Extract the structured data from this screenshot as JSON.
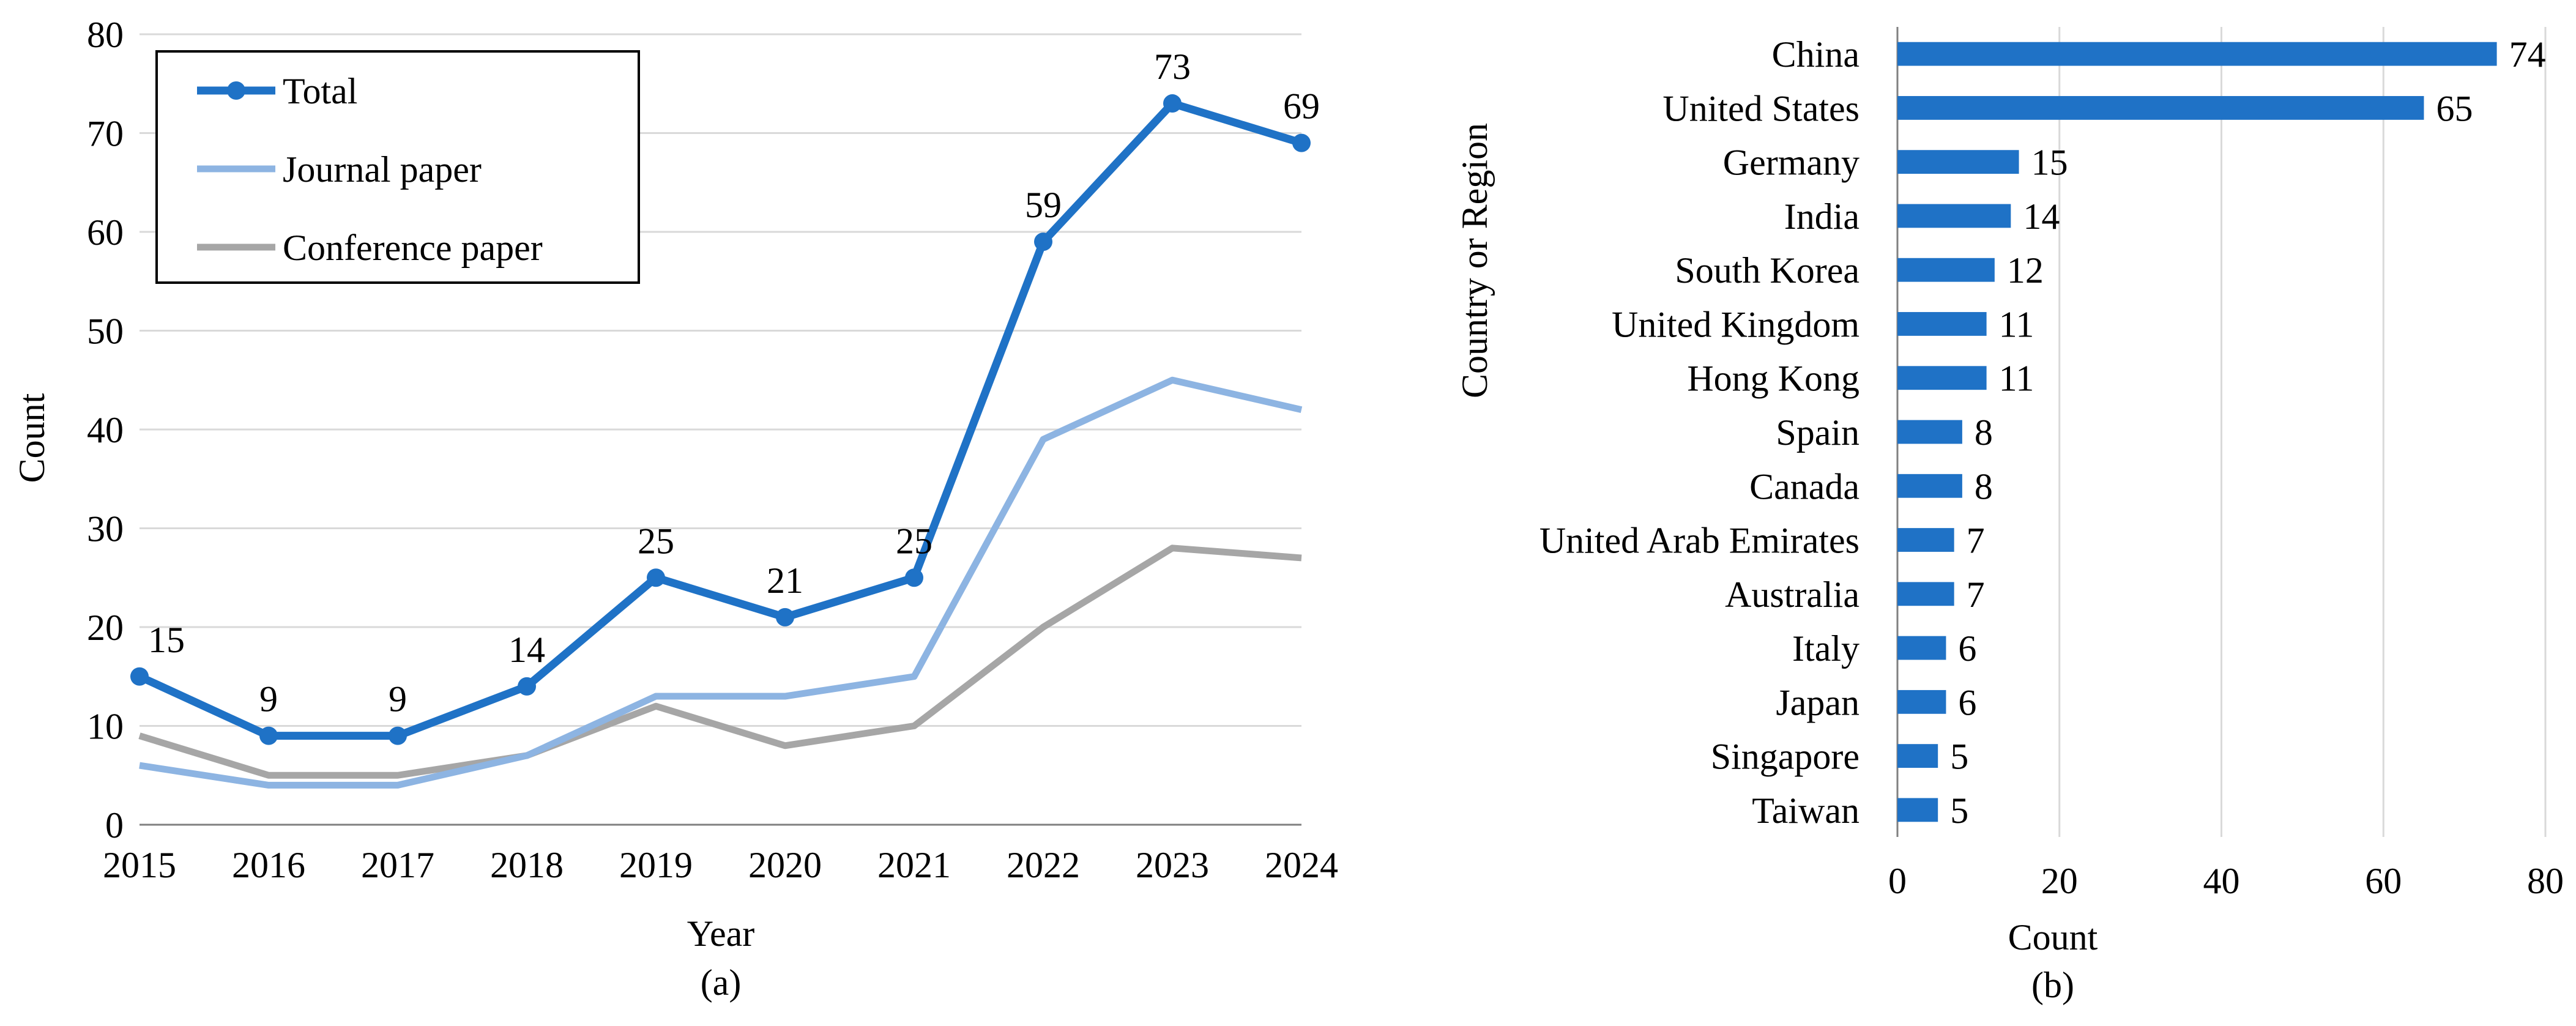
{
  "colors": {
    "total": "#1f72c6",
    "journal": "#8db4e2",
    "conference": "#a6a6a6",
    "bar": "#1f72c6",
    "grid": "#d9d9d9",
    "axis": "#808080",
    "legend_border": "#000000"
  },
  "chart_data": [
    {
      "type": "line",
      "panel_label": "(a)",
      "xlabel": "Year",
      "ylabel": "Count",
      "x": [
        "2015",
        "2016",
        "2017",
        "2018",
        "2019",
        "2020",
        "2021",
        "2022",
        "2023",
        "2024"
      ],
      "ylim": [
        0,
        80
      ],
      "yticks": [
        "0",
        "10",
        "20",
        "30",
        "40",
        "50",
        "60",
        "70",
        "80"
      ],
      "grid": true,
      "legend_position": "top-left",
      "series": [
        {
          "name": "Total",
          "key": "total",
          "markers": true,
          "data_labels": true,
          "values": [
            15,
            9,
            9,
            14,
            25,
            21,
            25,
            59,
            73,
            69
          ],
          "labels": [
            "15",
            "9",
            "9",
            "14",
            "25",
            "21",
            "25",
            "59",
            "73",
            "69"
          ]
        },
        {
          "name": "Journal paper",
          "key": "journal",
          "markers": false,
          "data_labels": false,
          "values": [
            6,
            4,
            4,
            7,
            13,
            13,
            15,
            39,
            45,
            42
          ]
        },
        {
          "name": "Conference paper",
          "key": "conference",
          "markers": false,
          "data_labels": false,
          "values": [
            9,
            5,
            5,
            7,
            12,
            8,
            10,
            20,
            28,
            27
          ]
        }
      ]
    },
    {
      "type": "bar",
      "orientation": "horizontal",
      "panel_label": "(b)",
      "xlabel": "Count",
      "ylabel": "Country or Region",
      "xlim": [
        0,
        80
      ],
      "xticks": [
        "0",
        "20",
        "40",
        "60",
        "80"
      ],
      "grid": true,
      "categories": [
        "China",
        "United States",
        "Germany",
        "India",
        "South Korea",
        "United Kingdom",
        "Hong Kong",
        "Spain",
        "Canada",
        "United Arab Emirates",
        "Australia",
        "Italy",
        "Japan",
        "Singapore",
        "Taiwan"
      ],
      "values": [
        74,
        65,
        15,
        14,
        12,
        11,
        11,
        8,
        8,
        7,
        7,
        6,
        6,
        5,
        5
      ],
      "labels": [
        "74",
        "65",
        "15",
        "14",
        "12",
        "11",
        "11",
        "8",
        "8",
        "7",
        "7",
        "6",
        "6",
        "5",
        "5"
      ]
    }
  ]
}
